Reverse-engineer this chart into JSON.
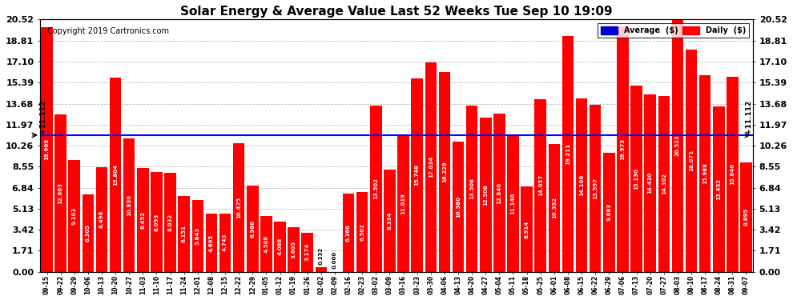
{
  "title": "Solar Energy & Average Value Last 52 Weeks Tue Sep 10 19:09",
  "copyright": "Copyright 2019 Cartronics.com",
  "average_label": "Average  ($)",
  "daily_label": "Daily  ($)",
  "average_value": 11.112,
  "average_label_left": "+11.112",
  "average_label_right": "+11.112",
  "bar_color": "#FF0000",
  "average_line_color": "#0000FF",
  "background_color": "#FFFFFF",
  "grid_color": "#BBBBBB",
  "ylim": [
    0.0,
    20.52
  ],
  "yticks": [
    0.0,
    1.71,
    3.42,
    5.13,
    6.84,
    8.55,
    10.26,
    11.97,
    13.68,
    15.39,
    17.1,
    18.81,
    20.52
  ],
  "categories": [
    "09-15",
    "09-22",
    "09-29",
    "10-06",
    "10-13",
    "10-20",
    "10-27",
    "11-03",
    "11-10",
    "11-17",
    "11-24",
    "12-01",
    "12-08",
    "12-15",
    "12-22",
    "12-29",
    "01-05",
    "01-12",
    "01-19",
    "01-26",
    "02-02",
    "02-09",
    "02-16",
    "02-23",
    "03-02",
    "03-09",
    "03-16",
    "03-23",
    "03-30",
    "04-06",
    "04-13",
    "04-20",
    "04-27",
    "05-04",
    "05-11",
    "05-18",
    "05-25",
    "06-01",
    "06-08",
    "06-15",
    "06-22",
    "06-29",
    "07-06",
    "07-13",
    "07-20",
    "07-27",
    "08-03",
    "08-10",
    "08-17",
    "08-24",
    "08-31",
    "09-07"
  ],
  "values": [
    19.909,
    12.803,
    9.103,
    6.305,
    8.496,
    15.804,
    10.83,
    8.452,
    8.093,
    8.032,
    6.151,
    5.843,
    4.695,
    4.743,
    10.475,
    6.988,
    4.508,
    4.088,
    3.605,
    3.174,
    0.332,
    0.0,
    6.366,
    6.502,
    13.502,
    8.334,
    11.019,
    15.748,
    17.034,
    16.229,
    10.58,
    13.508,
    12.508,
    12.84,
    11.14,
    6.914,
    14.057,
    10.392,
    19.211,
    14.108,
    13.597,
    9.683,
    19.973,
    15.13,
    14.43,
    14.302,
    20.523,
    18.071,
    15.988,
    13.452,
    15.84,
    8.895
  ],
  "legend_avg_color": "#0000CC",
  "legend_daily_color": "#FF0000",
  "title_fontsize": 11,
  "ylabel_fontsize": 8,
  "xlabel_fontsize": 5.5,
  "bar_label_fontsize": 5.0,
  "avg_label_fontsize": 6.5,
  "copyright_fontsize": 7
}
